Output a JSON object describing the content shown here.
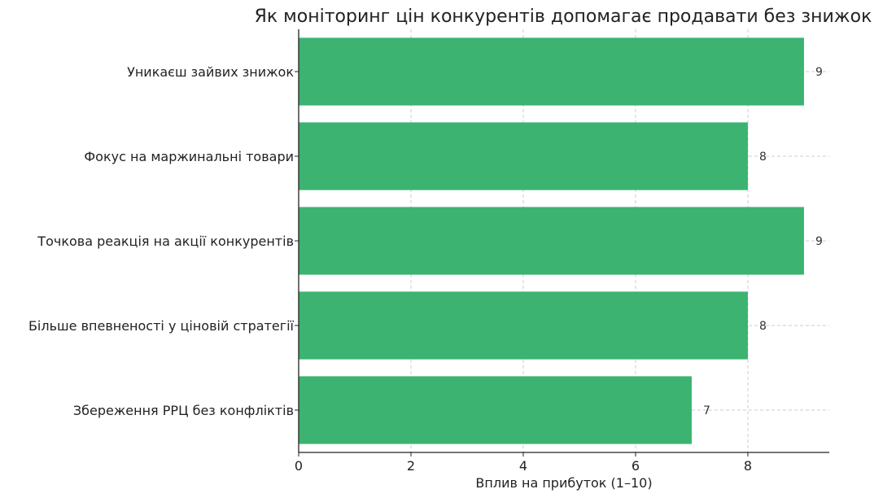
{
  "chart_data": {
    "type": "bar",
    "orientation": "horizontal",
    "title": "Як моніторинг цін конкурентів допомагає продавати без знижок",
    "xlabel": "Вплив на прибуток (1–10)",
    "ylabel": "",
    "categories": [
      "Уникаєш зайвих знижок",
      "Фокус на маржинальні товари",
      "Точкова реакція на акції конкурентів",
      "Більше впевненості у ціновій стратегії",
      "Збереження РРЦ без конфліктів"
    ],
    "values": [
      9,
      8,
      9,
      8,
      7
    ],
    "value_labels": [
      "9",
      "8",
      "9",
      "8",
      "7"
    ],
    "xlim": [
      0,
      9.45
    ],
    "xticks": [
      0,
      2,
      4,
      6,
      8
    ],
    "xtick_labels": [
      "0",
      "2",
      "4",
      "6",
      "8"
    ],
    "grid": true,
    "bar_color": "#3cb371",
    "grid_color": "#cccccc",
    "axis_color": "#222222"
  }
}
